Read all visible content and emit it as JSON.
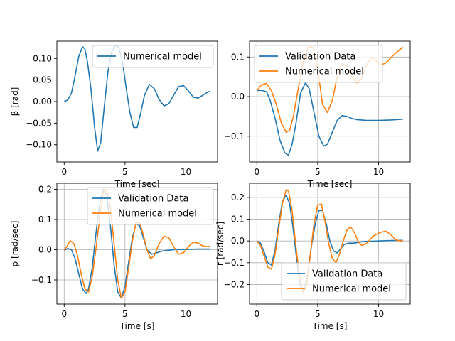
{
  "colors": {
    "validation": "#1f77b4",
    "numerical": "#ff7f0e",
    "grid": "#b0b0b0"
  },
  "chart_data": [
    {
      "type": "line",
      "id": "beta",
      "xlabel": "Time [sec]",
      "ylabel": "β [rad]",
      "xlim": [
        -0.6,
        12.6
      ],
      "ylim": [
        -0.14,
        0.14
      ],
      "xticks": [
        0,
        5,
        10
      ],
      "yticks": [
        -0.1,
        -0.05,
        0.0,
        0.05,
        0.1
      ],
      "ytick_labels": [
        "−0.10",
        "−0.05",
        "0.00",
        "0.05",
        "0.10"
      ],
      "grid": false,
      "legend": "upper right",
      "series": [
        {
          "name": "Numerical model",
          "color": "#1f77b4",
          "x": [
            0,
            0.3,
            0.6,
            0.9,
            1.2,
            1.5,
            1.7,
            1.9,
            2.2,
            2.5,
            2.75,
            3.0,
            3.3,
            3.6,
            3.9,
            4.2,
            4.5,
            4.8,
            5.1,
            5.4,
            5.7,
            6.0,
            6.3,
            6.6,
            7.0,
            7.4,
            7.8,
            8.2,
            8.6,
            9.0,
            9.4,
            9.8,
            10.2,
            10.6,
            11.0,
            11.4,
            11.8,
            12.0
          ],
          "y": [
            0,
            0.004,
            0.02,
            0.06,
            0.105,
            0.127,
            0.122,
            0.095,
            0.03,
            -0.06,
            -0.115,
            -0.095,
            -0.01,
            0.07,
            0.115,
            0.13,
            0.125,
            0.09,
            0.03,
            -0.025,
            -0.06,
            -0.06,
            -0.025,
            0.015,
            0.04,
            0.03,
            0.005,
            -0.01,
            -0.005,
            0.015,
            0.035,
            0.037,
            0.025,
            0.01,
            0.008,
            0.015,
            0.022,
            0.024
          ]
        }
      ]
    },
    {
      "type": "line",
      "id": "phi",
      "xlabel": "Time [sec]",
      "ylabel": "",
      "xlim": [
        -0.6,
        12.6
      ],
      "ylim": [
        -0.165,
        0.14
      ],
      "xticks": [
        0,
        5,
        10
      ],
      "yticks": [
        -0.1,
        0.0,
        0.1
      ],
      "ytick_labels": [
        "−0.1",
        "0.0",
        "0.1"
      ],
      "grid": true,
      "legend": "upper left",
      "series": [
        {
          "name": "Validation Data",
          "color": "#1f77b4",
          "x": [
            0,
            0.4,
            0.8,
            1.1,
            1.5,
            1.9,
            2.3,
            2.6,
            2.9,
            3.2,
            3.6,
            4.0,
            4.3,
            4.7,
            5.1,
            5.5,
            5.8,
            6.2,
            6.6,
            7.0,
            7.4,
            7.8,
            8.2,
            8.6,
            9.0,
            10.0,
            11.0,
            12.0
          ],
          "y": [
            0.015,
            0.016,
            0.012,
            -0.01,
            -0.055,
            -0.11,
            -0.142,
            -0.148,
            -0.12,
            -0.07,
            0.01,
            0.035,
            0.02,
            -0.04,
            -0.1,
            -0.125,
            -0.12,
            -0.09,
            -0.06,
            -0.048,
            -0.05,
            -0.055,
            -0.058,
            -0.059,
            -0.06,
            -0.06,
            -0.059,
            -0.057
          ]
        },
        {
          "name": "Numerical model",
          "color": "#ff7f0e",
          "x": [
            0,
            0.4,
            0.8,
            1.2,
            1.6,
            2.0,
            2.4,
            2.7,
            3.0,
            3.4,
            3.8,
            4.2,
            4.6,
            5.0,
            5.4,
            5.8,
            6.2,
            6.6,
            7.0,
            7.4,
            7.8,
            8.2,
            8.6,
            9.0,
            9.4,
            9.8,
            10.2,
            10.6,
            11.0,
            11.4,
            12.0
          ],
          "y": [
            0.015,
            0.03,
            0.033,
            0.015,
            -0.02,
            -0.065,
            -0.09,
            -0.085,
            -0.05,
            0.02,
            0.085,
            0.125,
            0.125,
            0.07,
            -0.02,
            -0.04,
            -0.01,
            0.05,
            0.085,
            0.075,
            0.05,
            0.035,
            0.045,
            0.08,
            0.1,
            0.09,
            0.08,
            0.085,
            0.098,
            0.11,
            0.125
          ]
        }
      ]
    },
    {
      "type": "line",
      "id": "p",
      "xlabel": "Time [s]",
      "ylabel": "p [rad/sec]",
      "xlim": [
        -0.6,
        12.6
      ],
      "ylim": [
        -0.18,
        0.22
      ],
      "xticks": [
        0,
        5,
        10
      ],
      "yticks": [
        -0.1,
        0.0,
        0.1,
        0.2
      ],
      "ytick_labels": [
        "−0.1",
        "0.0",
        "0.1",
        "0.2"
      ],
      "grid": true,
      "legend": "upper right",
      "series": [
        {
          "name": "Validation Data",
          "color": "#1f77b4",
          "x": [
            0,
            0.3,
            0.6,
            0.9,
            1.2,
            1.5,
            1.8,
            2.0,
            2.3,
            2.6,
            2.9,
            3.2,
            3.5,
            3.8,
            4.1,
            4.4,
            4.7,
            5.0,
            5.3,
            5.6,
            5.9,
            6.2,
            6.5,
            6.8,
            7.2,
            7.6,
            8.0,
            8.5,
            9.0,
            10.0,
            11.0,
            12.0
          ],
          "y": [
            -0.002,
            0.004,
            0.0,
            -0.03,
            -0.08,
            -0.13,
            -0.145,
            -0.13,
            -0.06,
            0.05,
            0.15,
            0.2,
            0.18,
            0.08,
            -0.05,
            -0.14,
            -0.16,
            -0.12,
            -0.04,
            0.04,
            0.085,
            0.08,
            0.04,
            0.0,
            -0.015,
            -0.01,
            -0.005,
            -0.002,
            0.0,
            0.001,
            0.002,
            0.002
          ]
        },
        {
          "name": "Numerical model",
          "color": "#ff7f0e",
          "x": [
            0,
            0.2,
            0.5,
            0.8,
            1.1,
            1.4,
            1.7,
            2.0,
            2.3,
            2.6,
            2.9,
            3.2,
            3.5,
            3.8,
            4.1,
            4.4,
            4.7,
            5.0,
            5.3,
            5.6,
            5.9,
            6.2,
            6.5,
            6.8,
            7.1,
            7.4,
            7.8,
            8.2,
            8.6,
            9.0,
            9.4,
            9.8,
            10.2,
            10.6,
            11.0,
            11.4,
            11.8,
            12.0
          ],
          "y": [
            -0.002,
            0.01,
            0.03,
            0.02,
            -0.02,
            -0.08,
            -0.13,
            -0.14,
            -0.09,
            0.0,
            0.1,
            0.19,
            0.2,
            0.14,
            0.02,
            -0.1,
            -0.16,
            -0.14,
            -0.06,
            0.03,
            0.09,
            0.09,
            0.05,
            0.0,
            -0.03,
            -0.02,
            0.02,
            0.045,
            0.04,
            0.01,
            -0.015,
            -0.01,
            0.01,
            0.025,
            0.022,
            0.012,
            0.01,
            0.012
          ]
        }
      ]
    },
    {
      "type": "line",
      "id": "r",
      "xlabel": "Time [s]",
      "ylabel": "r [rad/sec]",
      "xlim": [
        -0.6,
        12.6
      ],
      "ylim": [
        -0.29,
        0.265
      ],
      "xticks": [
        0,
        5,
        10
      ],
      "yticks": [
        -0.2,
        -0.1,
        0.0,
        0.1,
        0.2
      ],
      "ytick_labels": [
        "−0.2",
        "−0.1",
        "0.0",
        "0.1",
        "0.2"
      ],
      "grid": true,
      "legend": "lower right",
      "series": [
        {
          "name": "Validation Data",
          "color": "#1f77b4",
          "x": [
            0,
            0.3,
            0.6,
            0.9,
            1.2,
            1.5,
            1.8,
            2.1,
            2.4,
            2.7,
            3.0,
            3.3,
            3.6,
            3.9,
            4.2,
            4.5,
            4.8,
            5.1,
            5.4,
            5.7,
            6.0,
            6.3,
            6.6,
            6.9,
            7.2,
            7.6,
            8.0,
            8.5,
            9.0,
            10.0,
            11.0,
            12.0
          ],
          "y": [
            0,
            -0.01,
            -0.05,
            -0.1,
            -0.11,
            -0.04,
            0.08,
            0.18,
            0.21,
            0.17,
            0.05,
            -0.1,
            -0.21,
            -0.23,
            -0.14,
            -0.02,
            0.08,
            0.14,
            0.14,
            0.08,
            0.0,
            -0.045,
            -0.055,
            -0.035,
            -0.015,
            -0.01,
            -0.01,
            -0.005,
            -0.002,
            0.0,
            0.002,
            0.003
          ]
        },
        {
          "name": "Numerical model",
          "color": "#ff7f0e",
          "x": [
            0,
            0.3,
            0.6,
            0.9,
            1.2,
            1.5,
            1.8,
            2.1,
            2.4,
            2.6,
            2.9,
            3.2,
            3.5,
            3.8,
            4.1,
            4.4,
            4.7,
            5.0,
            5.3,
            5.6,
            5.9,
            6.2,
            6.5,
            6.8,
            7.1,
            7.4,
            7.7,
            8.0,
            8.3,
            8.6,
            8.9,
            9.2,
            9.5,
            9.8,
            10.2,
            10.6,
            11.0,
            11.4,
            11.8,
            12.0
          ],
          "y": [
            0,
            -0.02,
            -0.07,
            -0.12,
            -0.13,
            -0.06,
            0.06,
            0.17,
            0.235,
            0.23,
            0.14,
            -0.02,
            -0.16,
            -0.24,
            -0.2,
            -0.06,
            0.08,
            0.165,
            0.17,
            0.09,
            -0.01,
            -0.08,
            -0.1,
            -0.06,
            0.0,
            0.05,
            0.065,
            0.04,
            0.0,
            -0.02,
            -0.015,
            0.0,
            0.02,
            0.03,
            0.04,
            0.045,
            0.03,
            0.005,
            0.0,
            0.002
          ]
        }
      ]
    }
  ]
}
